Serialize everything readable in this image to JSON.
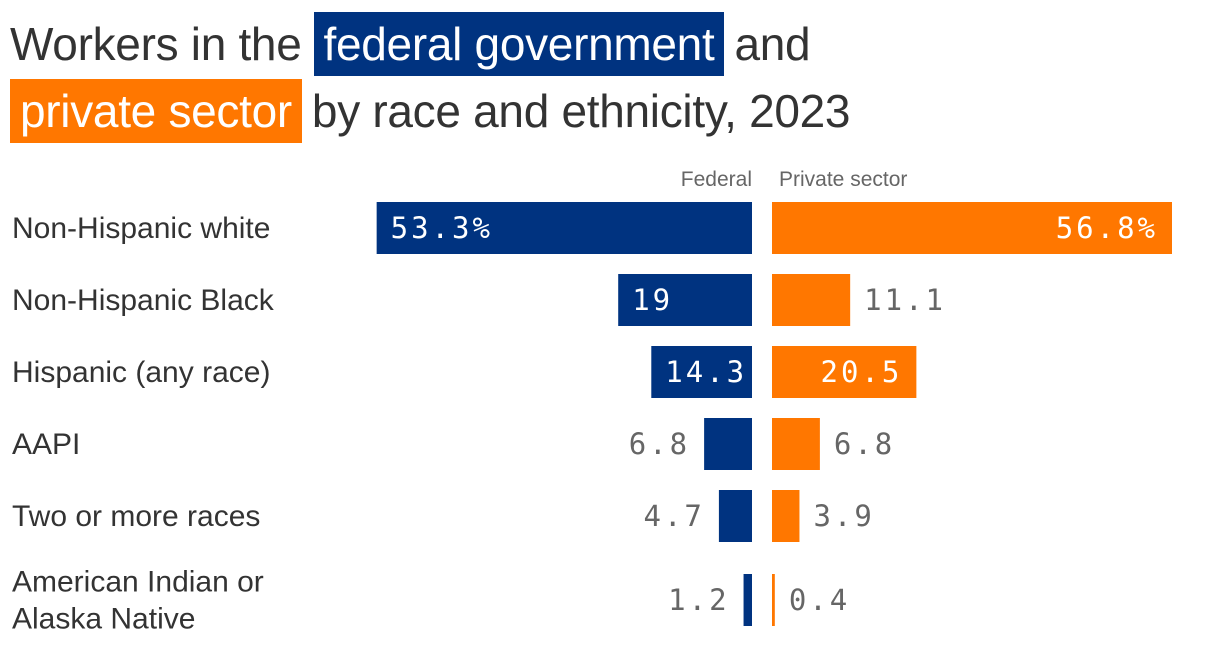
{
  "title": {
    "prefix": "Workers in the",
    "highlight1": "federal government",
    "connector": "and",
    "highlight2": "private sector",
    "suffix": "by race and ethnicity, 2023"
  },
  "colors": {
    "federal": "#003380",
    "private": "#ff7700",
    "text": "#333333",
    "muted": "#666666"
  },
  "chart_data": {
    "type": "bar",
    "orientation": "horizontal-diverging",
    "title": "Workers in the federal government and private sector by race and ethnicity, 2023",
    "categories": [
      [
        "Non-Hispanic white"
      ],
      [
        "Non-Hispanic Black"
      ],
      [
        "Hispanic (any race)"
      ],
      [
        "AAPI"
      ],
      [
        "Two or more races"
      ],
      [
        "American Indian or",
        "Alaska Native"
      ]
    ],
    "series": [
      {
        "name": "Federal",
        "values": [
          53.3,
          19,
          14.3,
          6.8,
          4.7,
          1.2
        ],
        "labels": [
          "53.3%",
          "19",
          "14.3",
          "6.8",
          "4.7",
          "1.2"
        ]
      },
      {
        "name": "Private sector",
        "values": [
          56.8,
          11.1,
          20.5,
          6.8,
          3.9,
          0.4
        ],
        "labels": [
          "56.8%",
          "11.1",
          "20.5",
          "6.8",
          "3.9",
          "0.4"
        ]
      }
    ],
    "unit": "%",
    "xlim": [
      0,
      56.8
    ],
    "grid": false
  }
}
